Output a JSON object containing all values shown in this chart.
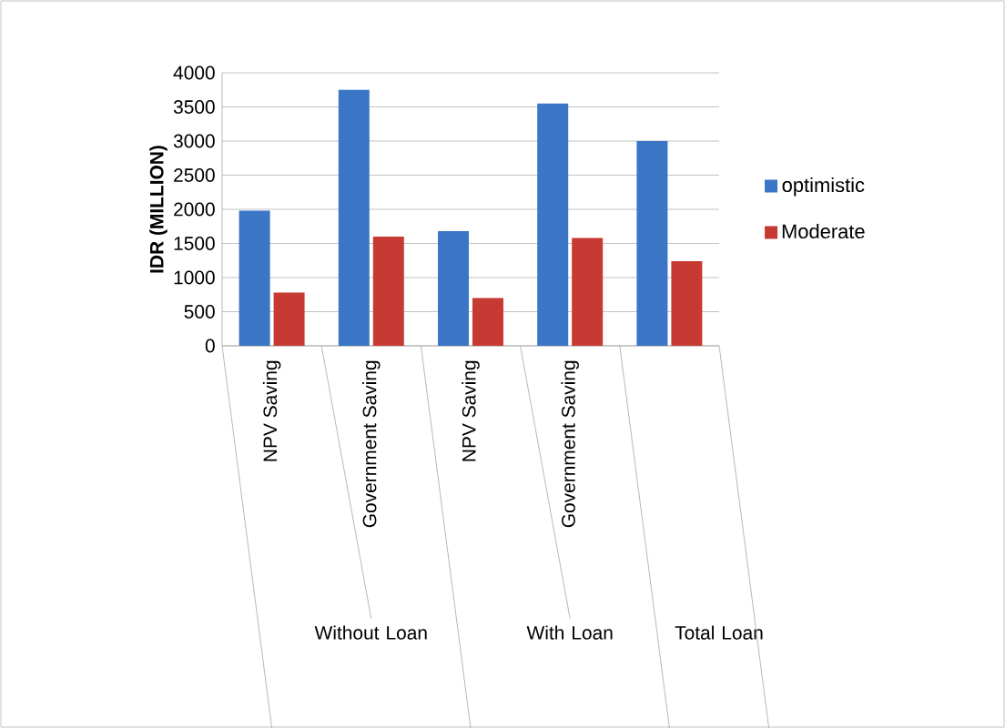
{
  "chart_data": {
    "type": "bar",
    "ylabel": "IDR (MILLION)",
    "categories": [
      "NPV Saving",
      "Government Saving",
      "NPV Saving",
      "Government Saving",
      null
    ],
    "series": [
      {
        "name": "optimistic",
        "color": "#3b76c6",
        "values": [
          1980,
          3750,
          1680,
          3550,
          3000
        ]
      },
      {
        "name": "Moderate",
        "color": "#c73a33",
        "values": [
          780,
          1600,
          700,
          1580,
          1240
        ]
      }
    ],
    "ylim": [
      0,
      4000
    ],
    "yticks": [
      0,
      500,
      1000,
      1500,
      2000,
      2500,
      3000,
      3500,
      4000
    ],
    "grid": "y",
    "legend": "right",
    "annotations": [
      "Without Loan",
      "With Loan",
      "Total Loan"
    ]
  }
}
